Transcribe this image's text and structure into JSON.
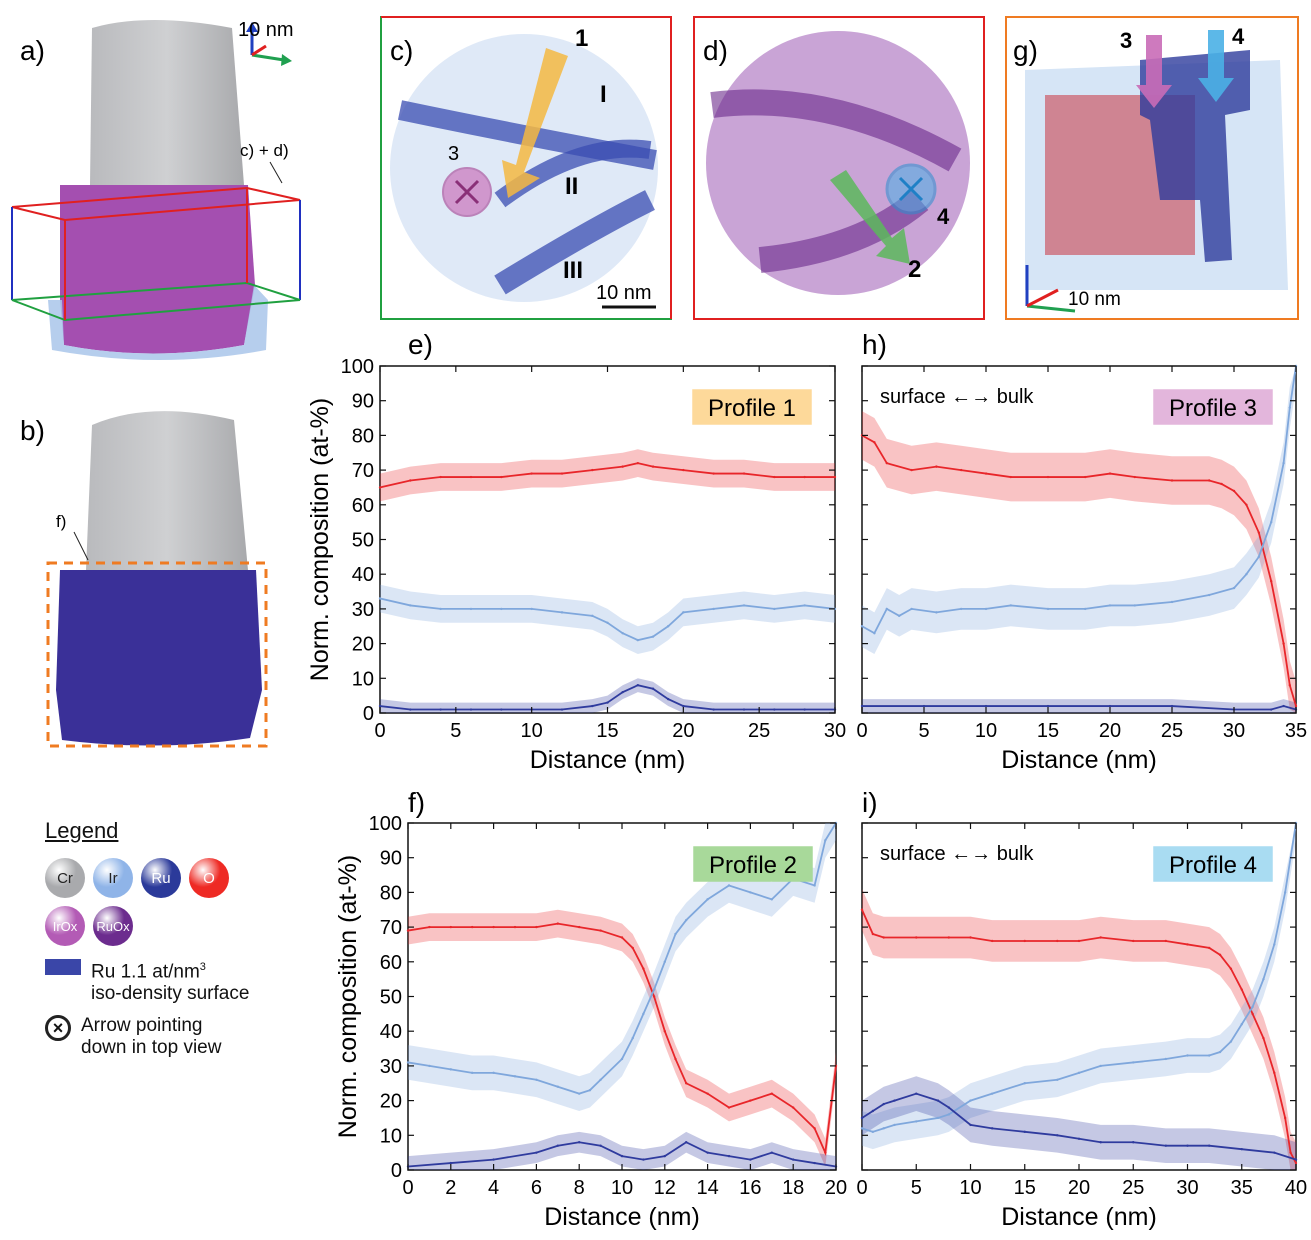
{
  "panel_labels": {
    "a": "a)",
    "b": "b)",
    "c": "c)",
    "d": "d)",
    "e": "e)",
    "f": "f)",
    "g": "g)",
    "h": "h)",
    "i": "i)"
  },
  "tomo": {
    "scale_a": "10 nm",
    "box_label": "c) + d)",
    "f_marker": "f)",
    "c_profile": "1",
    "c_circle": "3",
    "c_regions": [
      "I",
      "II",
      "III"
    ],
    "c_scale": "10 nm",
    "d_profile": "2",
    "d_circle": "4",
    "g_profiles": [
      "3",
      "4"
    ],
    "g_scale": "10 nm"
  },
  "legend": {
    "title": "Legend",
    "elements": [
      {
        "symbol": "Cr",
        "color": "#a9aaad"
      },
      {
        "symbol": "Ir",
        "color": "#8fb4e8"
      },
      {
        "symbol": "Ru",
        "color": "#2b3a9a"
      },
      {
        "symbol": "O",
        "color": "#ee2a24"
      }
    ],
    "oxides": [
      {
        "symbol": "IrOx",
        "color": "#b35bb5"
      },
      {
        "symbol": "RuOx",
        "color": "#6c2c8e"
      }
    ],
    "iso_line1": "Ru 1.1 at/nm",
    "iso_sup": "3",
    "iso_line2": "iso-density surface",
    "arrow_line1": "Arrow pointing",
    "arrow_line2": "down in top view"
  },
  "colors": {
    "O": "#e8262a",
    "Ir": "#7fa7dc",
    "Ru": "#2f3b9e",
    "profile1": "#fdd99a",
    "profile2": "#a8d99a",
    "profile3": "#e3b6dc",
    "profile4": "#a9dcf2"
  },
  "chart_data": [
    {
      "id": "e",
      "type": "line",
      "xlabel": "Distance (nm)",
      "ylabel": "Norm. composition (at-%)",
      "xlim": [
        0,
        30
      ],
      "ylim": [
        0,
        100
      ],
      "xticks": [
        0,
        5,
        10,
        15,
        20,
        25,
        30
      ],
      "yticks": [
        0,
        10,
        20,
        30,
        40,
        50,
        60,
        70,
        80,
        90,
        100
      ],
      "box_label": "Profile 1",
      "box_color": "profile1",
      "annotation": "",
      "series": [
        {
          "element": "O",
          "x": [
            0,
            2,
            4,
            6,
            8,
            10,
            12,
            14,
            16,
            17,
            18,
            20,
            22,
            24,
            26,
            28,
            30
          ],
          "y": [
            65,
            67,
            68,
            68,
            68,
            69,
            69,
            70,
            71,
            72,
            71,
            70,
            69,
            69,
            68,
            68,
            68
          ],
          "band": 4
        },
        {
          "element": "Ir",
          "x": [
            0,
            2,
            4,
            6,
            8,
            10,
            12,
            14,
            15,
            16,
            17,
            18,
            19,
            20,
            22,
            24,
            26,
            28,
            30
          ],
          "y": [
            33,
            31,
            30,
            30,
            30,
            30,
            29,
            28,
            26,
            23,
            21,
            22,
            25,
            29,
            30,
            31,
            30,
            31,
            30
          ],
          "band": 4
        },
        {
          "element": "Ru",
          "x": [
            0,
            2,
            4,
            6,
            8,
            10,
            12,
            14,
            15,
            16,
            17,
            18,
            19,
            20,
            22,
            24,
            26,
            28,
            30
          ],
          "y": [
            2,
            1,
            1,
            1,
            1,
            1,
            1,
            2,
            3,
            6,
            8,
            7,
            4,
            2,
            1,
            1,
            1,
            1,
            1
          ],
          "band": 2
        }
      ]
    },
    {
      "id": "h",
      "type": "line",
      "xlabel": "Distance (nm)",
      "ylabel": "",
      "xlim": [
        0,
        35
      ],
      "ylim": [
        0,
        100
      ],
      "xticks": [
        0,
        5,
        10,
        15,
        20,
        25,
        30,
        35
      ],
      "yticks": [],
      "box_label": "Profile 3",
      "box_color": "profile3",
      "annotation": "surface ←→ bulk",
      "series": [
        {
          "element": "O",
          "x": [
            0,
            1,
            2,
            4,
            6,
            8,
            10,
            12,
            15,
            18,
            20,
            22,
            25,
            28,
            29,
            30,
            31,
            32,
            33,
            34,
            34.5,
            35
          ],
          "y": [
            80,
            78,
            72,
            70,
            71,
            70,
            69,
            68,
            68,
            68,
            69,
            68,
            67,
            67,
            66,
            64,
            60,
            52,
            38,
            20,
            8,
            2
          ],
          "band": 7
        },
        {
          "element": "Ir",
          "x": [
            0,
            1,
            2,
            3,
            4,
            6,
            8,
            10,
            12,
            15,
            18,
            20,
            22,
            25,
            28,
            30,
            31,
            32,
            33,
            34,
            34.5,
            35
          ],
          "y": [
            25,
            23,
            30,
            28,
            30,
            29,
            30,
            30,
            31,
            30,
            30,
            31,
            31,
            32,
            34,
            36,
            40,
            45,
            55,
            72,
            88,
            100
          ],
          "band": 6
        },
        {
          "element": "Ru",
          "x": [
            0,
            5,
            10,
            15,
            20,
            25,
            30,
            33,
            34,
            35
          ],
          "y": [
            2,
            2,
            2,
            2,
            2,
            2,
            1,
            1,
            2,
            1
          ],
          "band": 2
        }
      ]
    },
    {
      "id": "f",
      "type": "line",
      "xlabel": "Distance (nm)",
      "ylabel": "Norm. composition (at-%)",
      "xlim": [
        0,
        20
      ],
      "ylim": [
        0,
        100
      ],
      "xticks": [
        0,
        2,
        4,
        6,
        8,
        10,
        12,
        14,
        16,
        18,
        20
      ],
      "yticks": [
        0,
        10,
        20,
        30,
        40,
        50,
        60,
        70,
        80,
        90,
        100
      ],
      "box_label": "Profile 2",
      "box_color": "profile2",
      "annotation": "",
      "series": [
        {
          "element": "O",
          "x": [
            0,
            1,
            2,
            3,
            4,
            5,
            6,
            7,
            8,
            9,
            10,
            10.5,
            11,
            11.5,
            12,
            12.5,
            13,
            14,
            15,
            16,
            17,
            18,
            19,
            19.5,
            20
          ],
          "y": [
            69,
            70,
            70,
            70,
            70,
            70,
            70,
            71,
            70,
            69,
            67,
            64,
            58,
            50,
            40,
            32,
            25,
            22,
            18,
            20,
            22,
            18,
            12,
            5,
            30
          ],
          "band": 4
        },
        {
          "element": "Ir",
          "x": [
            0,
            1,
            2,
            3,
            4,
            5,
            6,
            7,
            8,
            8.5,
            9,
            10,
            10.5,
            11,
            11.5,
            12,
            12.5,
            13,
            14,
            15,
            16,
            17,
            18,
            19,
            19.5,
            20
          ],
          "y": [
            31,
            30,
            29,
            28,
            28,
            27,
            26,
            24,
            22,
            23,
            26,
            32,
            38,
            45,
            52,
            60,
            68,
            72,
            78,
            82,
            80,
            78,
            84,
            82,
            95,
            100
          ],
          "band": 5
        },
        {
          "element": "Ru",
          "x": [
            0,
            2,
            4,
            6,
            7,
            8,
            9,
            10,
            11,
            12,
            13,
            14,
            15,
            16,
            17,
            18,
            19,
            20
          ],
          "y": [
            1,
            2,
            3,
            5,
            7,
            8,
            7,
            4,
            3,
            4,
            8,
            5,
            4,
            3,
            5,
            3,
            2,
            1
          ],
          "band": 3
        }
      ]
    },
    {
      "id": "i",
      "type": "line",
      "xlabel": "Distance (nm)",
      "ylabel": "",
      "xlim": [
        0,
        40
      ],
      "ylim": [
        0,
        100
      ],
      "xticks": [
        0,
        5,
        10,
        15,
        20,
        25,
        30,
        35,
        40
      ],
      "yticks": [],
      "box_label": "Profile 4",
      "box_color": "profile4",
      "annotation": "surface ←→ bulk",
      "series": [
        {
          "element": "O",
          "x": [
            0,
            1,
            2,
            5,
            8,
            10,
            12,
            15,
            18,
            20,
            22,
            25,
            28,
            30,
            32,
            33,
            34,
            35,
            36,
            37,
            38,
            39,
            39.5,
            40
          ],
          "y": [
            75,
            68,
            67,
            67,
            67,
            67,
            66,
            66,
            66,
            66,
            67,
            66,
            66,
            65,
            64,
            62,
            58,
            52,
            45,
            38,
            28,
            15,
            5,
            2
          ],
          "band": 6
        },
        {
          "element": "Ir",
          "x": [
            0,
            1,
            2,
            3,
            5,
            7,
            8,
            10,
            12,
            15,
            18,
            20,
            22,
            25,
            28,
            30,
            32,
            33,
            34,
            35,
            36,
            37,
            38,
            39,
            40
          ],
          "y": [
            12,
            11,
            12,
            13,
            14,
            15,
            16,
            20,
            22,
            25,
            26,
            28,
            30,
            31,
            32,
            33,
            33,
            34,
            37,
            42,
            47,
            55,
            65,
            80,
            100
          ],
          "band": 5
        },
        {
          "element": "Ru",
          "x": [
            0,
            1,
            2,
            3,
            5,
            7,
            8,
            10,
            12,
            15,
            18,
            20,
            22,
            25,
            28,
            30,
            32,
            35,
            38,
            40
          ],
          "y": [
            15,
            17,
            19,
            20,
            22,
            20,
            18,
            13,
            12,
            11,
            10,
            9,
            8,
            8,
            7,
            7,
            7,
            6,
            5,
            3
          ],
          "band": 5
        }
      ]
    }
  ]
}
